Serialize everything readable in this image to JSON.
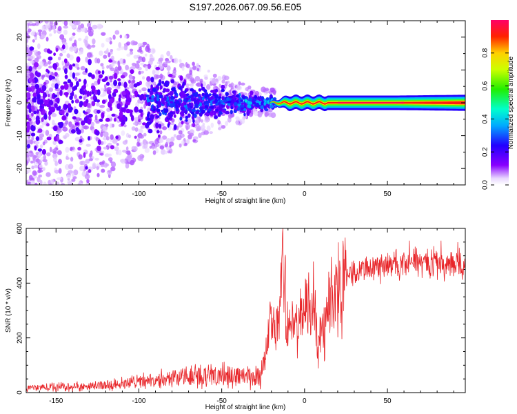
{
  "title": "S197.2026.067.09.56.E05",
  "colors": {
    "snr_line": "#e8262a",
    "frame": "#000000",
    "background": "#ffffff"
  },
  "chart_data": [
    {
      "type": "heatmap",
      "title": "S197.2026.067.09.56.E05",
      "xlabel": "Height of straight line (km)",
      "ylabel": "Frequency (Hz)",
      "xlim": [
        -168,
        97
      ],
      "ylim": [
        -25,
        25
      ],
      "xticks": [
        -150,
        -100,
        -50,
        0,
        50
      ],
      "yticks": [
        -20,
        -10,
        0,
        10,
        20
      ],
      "colorbar": {
        "label": "Normalized spectral amplitude",
        "range": [
          0,
          1
        ],
        "ticks": [
          0.0,
          0.2,
          0.4,
          0.6,
          0.8
        ],
        "colormap": "rainbow (violet to magenta-red)"
      },
      "features": [
        {
          "region": "scattered noise",
          "x_range": [
            -168,
            -40
          ],
          "freq_spread_hz": 25,
          "amplitude": "0.05-0.25"
        },
        {
          "region": "converging cluster",
          "x_range": [
            -90,
            -20
          ],
          "freq_spread_hz": 6,
          "amplitude": "0.2-0.45"
        },
        {
          "region": "coherent carrier",
          "x_range": [
            -20,
            97
          ],
          "freq_hz": 0,
          "amplitude_peak": 1.0
        }
      ]
    },
    {
      "type": "line",
      "xlabel": "Height of straight line (km)",
      "ylabel": "SNR (10 * v/v)",
      "xlim": [
        -168,
        97
      ],
      "ylim": [
        0,
        600
      ],
      "xticks": [
        -150,
        -100,
        -50,
        0,
        50
      ],
      "yticks": [
        0,
        200,
        400,
        600
      ],
      "series": [
        {
          "name": "SNR",
          "color": "#e8262a",
          "x": [
            -168,
            -150,
            -130,
            -110,
            -90,
            -75,
            -60,
            -45,
            -35,
            -27,
            -24,
            -21,
            -18,
            -15,
            -13,
            -11,
            -8,
            -4,
            0,
            5,
            8,
            12,
            18,
            25,
            35,
            50,
            65,
            80,
            97
          ],
          "y": [
            18,
            20,
            24,
            32,
            45,
            55,
            60,
            62,
            60,
            55,
            120,
            250,
            200,
            300,
            600,
            260,
            230,
            270,
            310,
            330,
            170,
            260,
            350,
            420,
            450,
            460,
            470,
            465,
            460
          ]
        }
      ]
    }
  ]
}
